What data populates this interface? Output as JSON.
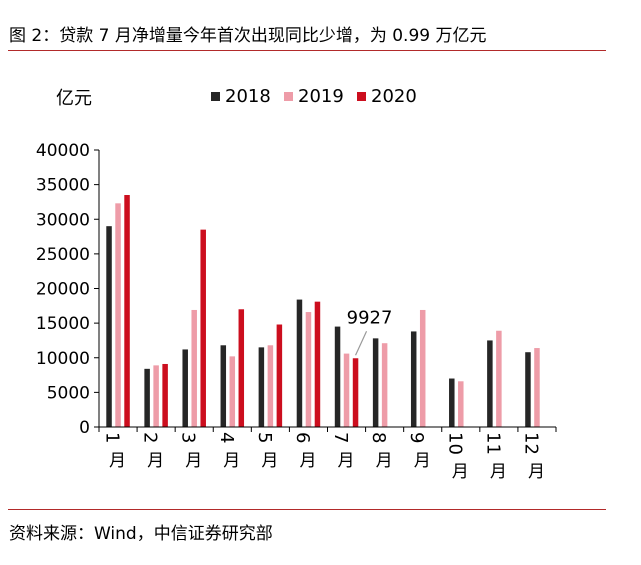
{
  "figure": {
    "title": "图 2：贷款 7 月净增量今年首次出现同比少增，为 0.99 万亿元",
    "source": "资料来源：Wind，中信证券研究部"
  },
  "colors": {
    "rule": "#b22a2a",
    "s2018": "#262626",
    "s2019": "#ee9ca8",
    "s2020": "#cc0e1e"
  },
  "chart_data": {
    "type": "bar",
    "ylabel": "亿元",
    "ylim": [
      0,
      40000
    ],
    "yticks": [
      "0",
      "5000",
      "10000",
      "15000",
      "20000",
      "25000",
      "30000",
      "35000",
      "40000"
    ],
    "categories": [
      "1月",
      "2月",
      "3月",
      "4月",
      "5月",
      "6月",
      "7月",
      "8月",
      "9月",
      "10月",
      "11月",
      "12月"
    ],
    "legend_position": "top",
    "series": [
      {
        "name": "2018",
        "values": [
          29000,
          8400,
          11200,
          11800,
          11500,
          18400,
          14500,
          12800,
          13800,
          7000,
          12500,
          10800
        ]
      },
      {
        "name": "2019",
        "values": [
          32300,
          8900,
          16900,
          10200,
          11800,
          16600,
          10600,
          12100,
          16900,
          6600,
          13900,
          11400
        ]
      },
      {
        "name": "2020",
        "values": [
          33500,
          9100,
          28500,
          17000,
          14800,
          18100,
          9927,
          null,
          null,
          null,
          null,
          null
        ]
      }
    ],
    "annotation": {
      "text": "9927",
      "category": "7月",
      "series": "2020"
    }
  }
}
